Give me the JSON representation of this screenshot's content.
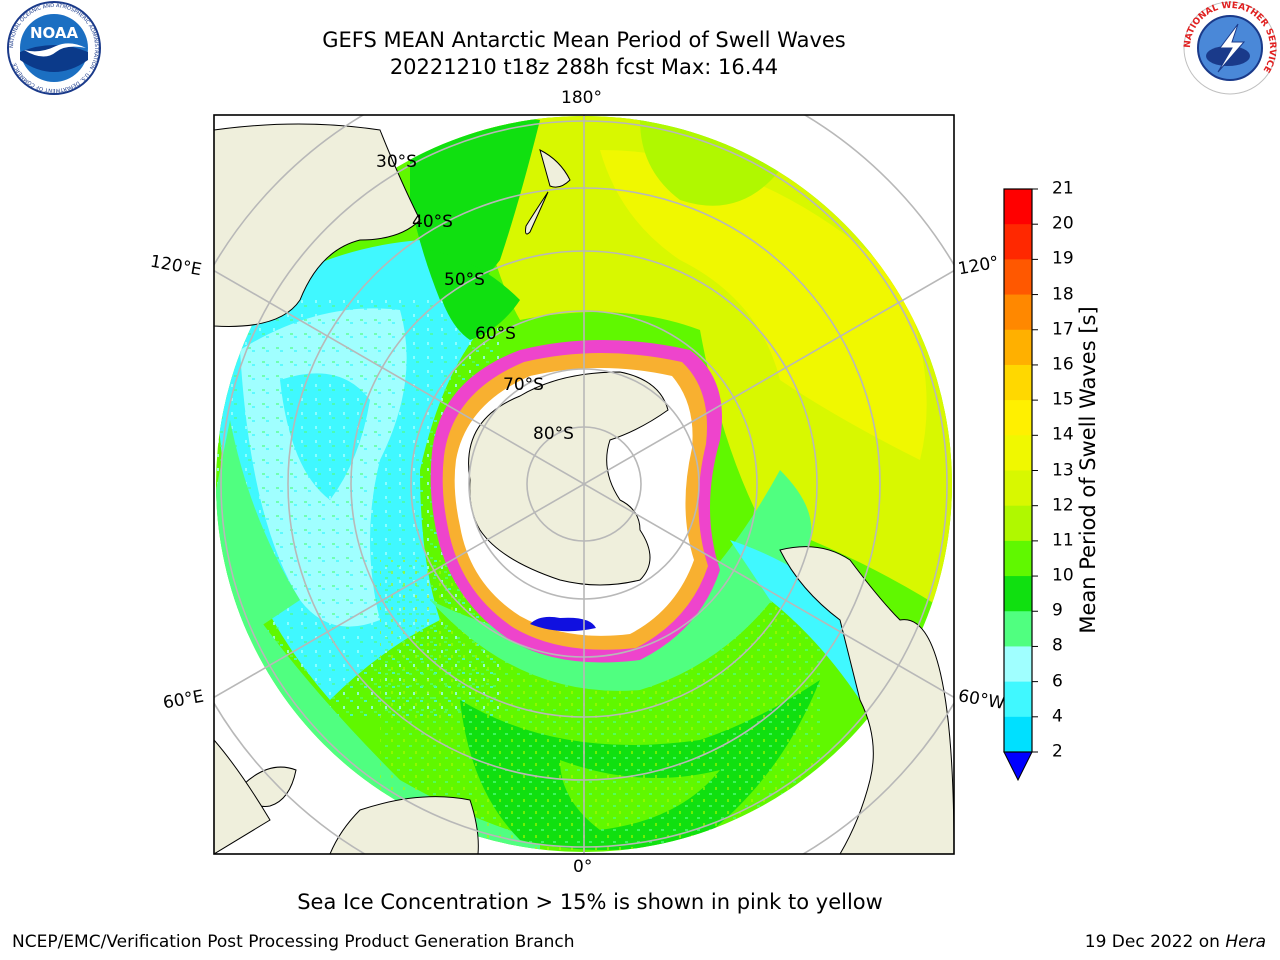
{
  "header": {
    "title_line1": "GEFS MEAN Antarctic Mean Period of Swell Waves",
    "title_line2": "20221210 t18z 288h fcst   Max: 16.44"
  },
  "logos": {
    "noaa": {
      "text": "NOAA",
      "ring_text": "NATIONAL OCEANIC AND ATMOSPHERIC ADMINISTRATION · U.S. DEPARTMENT OF COMMERCE"
    },
    "nws": {
      "ring_text": "NATIONAL WEATHER SERVICE"
    }
  },
  "map": {
    "projection": "south polar stereographic",
    "longitude_labels": {
      "top": "180°",
      "bottom": "0°",
      "left_upper": "120°E",
      "left_lower": "60°E",
      "right_upper": "120°",
      "right_lower": "60°W"
    },
    "latitude_labels": [
      "30°S",
      "40°S",
      "50°S",
      "60°S",
      "70°S",
      "80°S"
    ],
    "colors": {
      "land": "#efefdc",
      "coast": "#000000",
      "grid": "#b8b8b8",
      "ice_edge": "#ee44cc",
      "ice_inner": "#f8b030"
    }
  },
  "colorbar": {
    "label": "Mean Period of Swell Waves [s]",
    "ticks": [
      "2",
      "4",
      "6",
      "8",
      "9",
      "10",
      "11",
      "12",
      "13",
      "14",
      "15",
      "16",
      "17",
      "18",
      "19",
      "20",
      "21"
    ],
    "colors": [
      "#0050ff",
      "#00e0ff",
      "#40f8ff",
      "#a0ffff",
      "#50ff80",
      "#10e010",
      "#60f800",
      "#b0f800",
      "#d8f800",
      "#f0f800",
      "#fff000",
      "#ffd800",
      "#ffb000",
      "#ff8800",
      "#ff5800",
      "#ff2800",
      "#ff0000"
    ],
    "extend_color": "#0000ff"
  },
  "caption": "Sea Ice Concentration > 15% is shown in pink to yellow",
  "footer": {
    "left": "NCEP/EMC/Verification Post Processing Product Generation Branch",
    "right_date": "19 Dec 2022 on",
    "right_machine": "Hera"
  }
}
